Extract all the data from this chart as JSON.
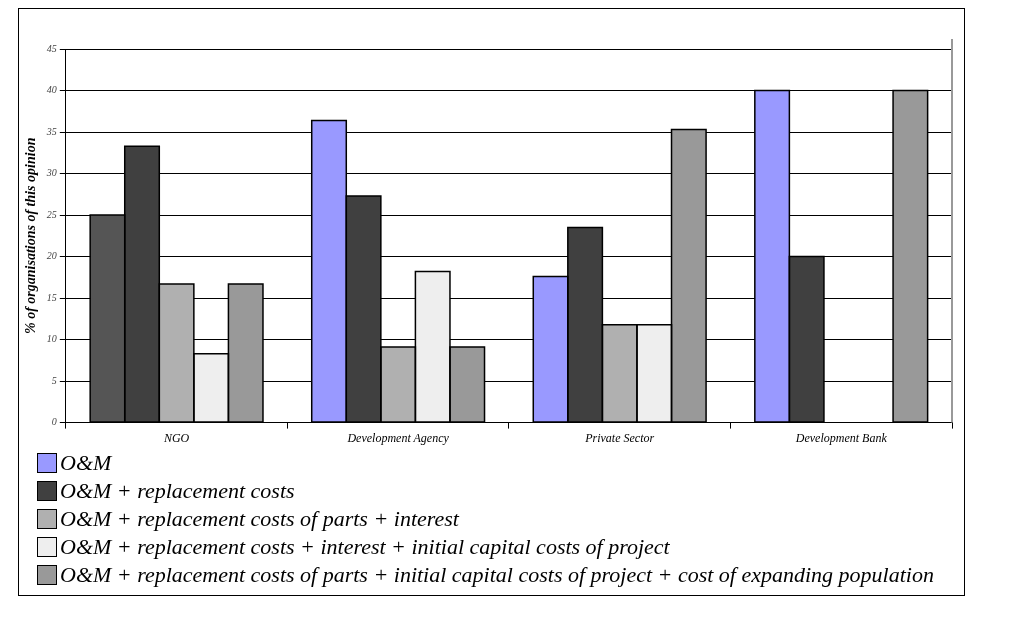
{
  "chart_data": {
    "type": "bar",
    "ylabel": "% of organisations of this opinion",
    "categories": [
      "NGO",
      "Development Agency",
      "Private Sector",
      "Development Bank"
    ],
    "series": [
      {
        "name": "O&M",
        "color": "#9999ff",
        "colors": [
          "#555555",
          "#9999ff",
          "#9999ff",
          "#9999ff"
        ],
        "values": [
          25,
          36.4,
          17.6,
          40
        ]
      },
      {
        "name": "O&M + replacement costs",
        "color": "#404040",
        "values": [
          33.3,
          27.3,
          23.5,
          20
        ]
      },
      {
        "name": "O&M + replacement costs of parts + interest",
        "color": "#b0b0b0",
        "values": [
          16.7,
          9.1,
          11.8,
          null
        ]
      },
      {
        "name": "O&M + replacement costs + interest + initial capital costs of project",
        "color": "#eeeeee",
        "values": [
          8.3,
          18.2,
          11.8,
          null
        ]
      },
      {
        "name": "O&M + replacement costs of parts + initial capital costs of project + cost of expanding population",
        "color": "#999999",
        "values": [
          16.7,
          9.1,
          35.3,
          40
        ]
      }
    ],
    "ylim": [
      0,
      45
    ],
    "yticks": [
      0,
      5,
      10,
      15,
      20,
      25,
      30,
      35,
      40,
      45
    ],
    "grid": "y",
    "legend": "bottom"
  }
}
